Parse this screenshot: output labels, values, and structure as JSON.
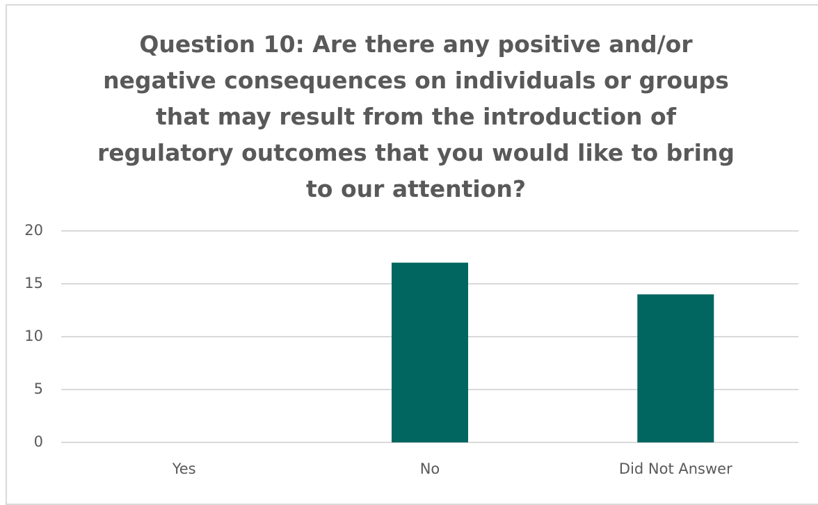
{
  "chart_data": {
    "type": "bar",
    "title": "Question 10: Are there any positive and/or negative consequences on individuals or groups that may result from the introduction of regulatory outcomes that you would like to bring to our attention?",
    "categories": [
      "Yes",
      "No",
      "Did Not Answer"
    ],
    "values": [
      0,
      17,
      14
    ],
    "color": "#00665f",
    "ylim": [
      0,
      20
    ],
    "yticks": [
      0,
      5,
      10,
      15,
      20
    ],
    "grid": true
  }
}
